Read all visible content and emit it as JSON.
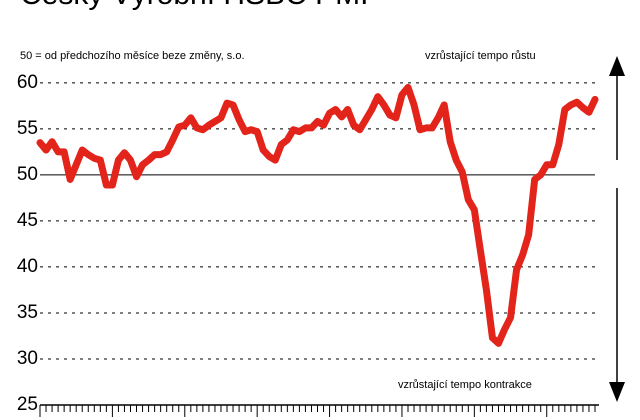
{
  "chart_data": {
    "type": "line",
    "title": "Český Výrobní HSBC PMI",
    "note": "50 = od předchozího měsíce beze změny, s.o.",
    "upper_label": "vzrůstající tempo růstu",
    "lower_label": "vzrůstající tempo kontrakce",
    "series": [
      {
        "color": "#e3241b",
        "values": [
          53.5,
          52.7,
          53.6,
          52.5,
          52.5,
          49.5,
          51.1,
          52.7,
          52.2,
          51.8,
          51.6,
          48.9,
          48.9,
          51.6,
          52.4,
          51.6,
          49.8,
          51.1,
          51.6,
          52.2,
          52.2,
          52.5,
          53.8,
          55.2,
          55.4,
          56.2,
          55.1,
          54.9,
          55.4,
          55.8,
          56.2,
          57.8,
          57.6,
          56.0,
          54.7,
          54.9,
          54.7,
          52.7,
          52.0,
          51.6,
          53.3,
          53.8,
          54.9,
          54.7,
          55.1,
          55.1,
          55.8,
          55.4,
          56.7,
          57.1,
          56.3,
          57.1,
          55.4,
          54.9,
          56.0,
          57.1,
          58.5,
          57.6,
          56.5,
          56.2,
          58.7,
          59.5,
          57.6,
          54.9,
          55.1,
          55.1,
          56.2,
          57.6,
          53.6,
          51.6,
          50.3,
          47.3,
          46.2,
          41.8,
          37.5,
          32.3,
          31.7,
          33.2,
          34.5,
          39.7,
          41.3,
          43.5,
          49.5,
          50.0,
          51.1,
          51.1,
          53.3,
          57.1,
          57.6,
          57.9,
          57.3,
          56.8,
          58.2
        ]
      }
    ],
    "ylim": [
      25,
      64
    ],
    "yticks": [
      25,
      30,
      35,
      40,
      45,
      50,
      55,
      60
    ],
    "baseline": 50,
    "grid": true
  }
}
